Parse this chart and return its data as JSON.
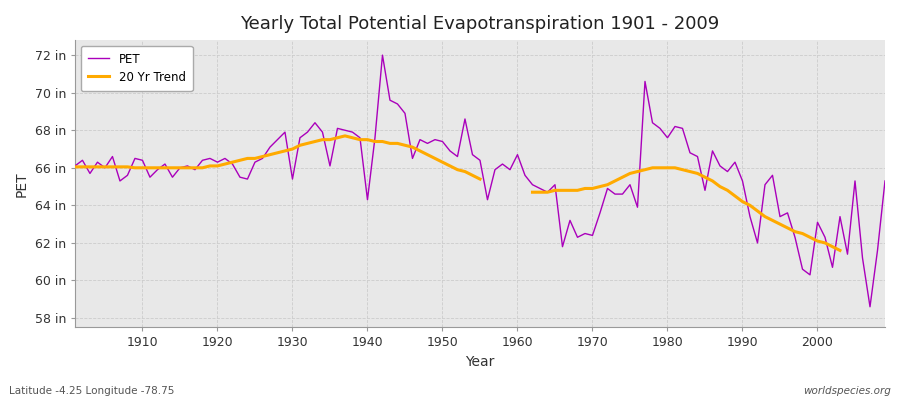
{
  "title": "Yearly Total Potential Evapotranspiration 1901 - 2009",
  "xlabel": "Year",
  "ylabel": "PET",
  "subtitle_left": "Latitude -4.25 Longitude -78.75",
  "subtitle_right": "worldspecies.org",
  "bg_color": "#ffffff",
  "plot_bg_color": "#e8e8e8",
  "pet_color": "#aa00bb",
  "trend_color": "#ffaa00",
  "ylim": [
    57.5,
    72.8
  ],
  "yticks": [
    58,
    60,
    62,
    64,
    66,
    68,
    70,
    72
  ],
  "ytick_labels": [
    "58 in",
    "60 in",
    "62 in",
    "64 in",
    "66 in",
    "68 in",
    "70 in",
    "72 in"
  ],
  "years": [
    1901,
    1902,
    1903,
    1904,
    1905,
    1906,
    1907,
    1908,
    1909,
    1910,
    1911,
    1912,
    1913,
    1914,
    1915,
    1916,
    1917,
    1918,
    1919,
    1920,
    1921,
    1922,
    1923,
    1924,
    1925,
    1926,
    1927,
    1928,
    1929,
    1930,
    1931,
    1932,
    1933,
    1934,
    1935,
    1936,
    1937,
    1938,
    1939,
    1940,
    1941,
    1942,
    1943,
    1944,
    1945,
    1946,
    1947,
    1948,
    1949,
    1950,
    1951,
    1952,
    1953,
    1954,
    1955,
    1956,
    1957,
    1958,
    1959,
    1960,
    1961,
    1962,
    1963,
    1964,
    1965,
    1966,
    1967,
    1968,
    1969,
    1970,
    1971,
    1972,
    1973,
    1974,
    1975,
    1976,
    1977,
    1978,
    1979,
    1980,
    1981,
    1982,
    1983,
    1984,
    1985,
    1986,
    1987,
    1988,
    1989,
    1990,
    1991,
    1992,
    1993,
    1994,
    1995,
    1996,
    1997,
    1998,
    1999,
    2000,
    2001,
    2002,
    2003,
    2004,
    2005,
    2006,
    2007,
    2008,
    2009
  ],
  "pet_values": [
    66.1,
    66.4,
    65.7,
    66.3,
    66.0,
    66.6,
    65.3,
    65.6,
    66.5,
    66.4,
    65.5,
    65.9,
    66.2,
    65.5,
    66.0,
    66.1,
    65.9,
    66.4,
    66.5,
    66.3,
    66.5,
    66.2,
    65.5,
    65.4,
    66.3,
    66.5,
    67.1,
    67.5,
    67.9,
    65.4,
    67.6,
    67.9,
    68.4,
    67.9,
    66.1,
    68.1,
    68.0,
    67.9,
    67.6,
    64.3,
    67.6,
    72.0,
    69.6,
    69.4,
    68.9,
    66.5,
    67.5,
    67.3,
    67.5,
    67.4,
    66.9,
    66.6,
    68.6,
    66.7,
    66.4,
    64.3,
    65.9,
    66.2,
    65.9,
    66.7,
    65.6,
    65.1,
    64.9,
    64.7,
    65.1,
    61.8,
    63.2,
    62.3,
    62.5,
    62.4,
    63.6,
    64.9,
    64.6,
    64.6,
    65.1,
    63.9,
    70.6,
    68.4,
    68.1,
    67.6,
    68.2,
    68.1,
    66.8,
    66.6,
    64.8,
    66.9,
    66.1,
    65.8,
    66.3,
    65.3,
    63.4,
    62.0,
    65.1,
    65.6,
    63.4,
    63.6,
    62.3,
    60.6,
    60.3,
    63.1,
    62.3,
    60.7,
    63.4,
    61.4,
    65.3,
    61.2,
    58.6,
    61.6,
    65.3
  ],
  "trend_segments": [
    {
      "years": [
        1901,
        1902,
        1903,
        1904,
        1905,
        1906,
        1907,
        1908,
        1909,
        1910,
        1911,
        1912,
        1913,
        1914,
        1915,
        1916,
        1917,
        1918,
        1919,
        1920,
        1921,
        1922,
        1923,
        1924,
        1925,
        1926,
        1927,
        1928,
        1929,
        1930,
        1931,
        1932,
        1933,
        1934,
        1935,
        1936,
        1937,
        1938,
        1939,
        1940,
        1941,
        1942,
        1943,
        1944,
        1945,
        1946,
        1947,
        1948,
        1949,
        1950,
        1951,
        1952,
        1953,
        1954,
        1955
      ],
      "values": [
        66.05,
        66.05,
        66.05,
        66.05,
        66.05,
        66.05,
        66.05,
        66.05,
        66.0,
        66.0,
        66.0,
        66.0,
        66.0,
        66.0,
        66.0,
        66.0,
        66.0,
        66.0,
        66.1,
        66.1,
        66.2,
        66.3,
        66.4,
        66.5,
        66.5,
        66.6,
        66.7,
        66.8,
        66.9,
        67.0,
        67.2,
        67.3,
        67.4,
        67.5,
        67.5,
        67.6,
        67.7,
        67.6,
        67.5,
        67.5,
        67.4,
        67.4,
        67.3,
        67.3,
        67.2,
        67.1,
        66.9,
        66.7,
        66.5,
        66.3,
        66.1,
        65.9,
        65.8,
        65.6,
        65.4
      ]
    },
    {
      "years": [
        1962,
        1963,
        1964,
        1965,
        1966,
        1967,
        1968,
        1969,
        1970,
        1971,
        1972,
        1973,
        1974,
        1975,
        1976,
        1977,
        1978,
        1979,
        1980,
        1981,
        1982,
        1983,
        1984,
        1985,
        1986,
        1987,
        1988,
        1989,
        1990,
        1991,
        1992,
        1993,
        1994,
        1995,
        1996,
        1997,
        1998,
        1999,
        2000,
        2001,
        2002,
        2003
      ],
      "values": [
        64.7,
        64.7,
        64.7,
        64.8,
        64.8,
        64.8,
        64.8,
        64.9,
        64.9,
        65.0,
        65.1,
        65.3,
        65.5,
        65.7,
        65.8,
        65.9,
        66.0,
        66.0,
        66.0,
        66.0,
        65.9,
        65.8,
        65.7,
        65.5,
        65.3,
        65.0,
        64.8,
        64.5,
        64.2,
        64.0,
        63.7,
        63.4,
        63.2,
        63.0,
        62.8,
        62.6,
        62.5,
        62.3,
        62.1,
        62.0,
        61.8,
        61.6
      ]
    }
  ]
}
